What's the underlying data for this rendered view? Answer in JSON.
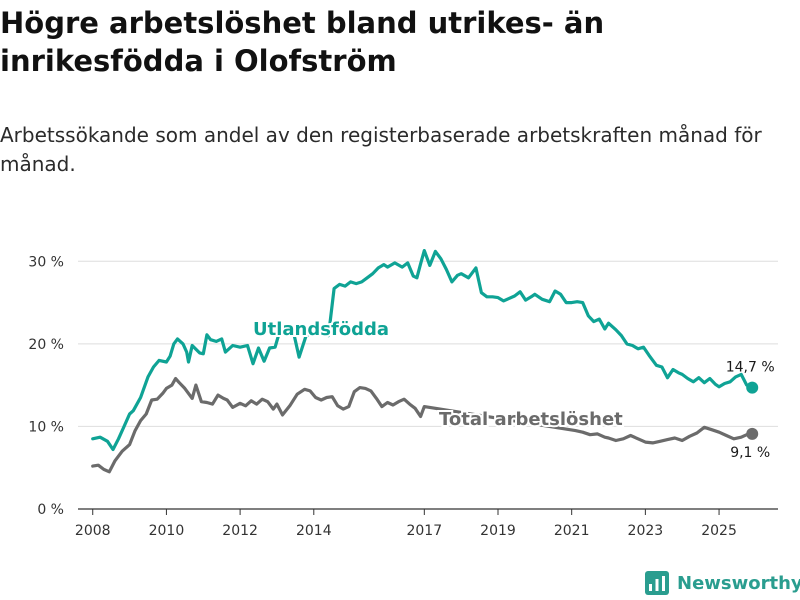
{
  "header": {
    "title": "Högre arbetslöshet bland utrikes- än inrikesfödda i Olofström",
    "subtitle": "Arbetssökande som andel av den registerbaserade arbetskraften månad för månad."
  },
  "brand": {
    "name": "Newsworthy"
  },
  "colors": {
    "teal": "#0fa395",
    "gray": "#6b6b6b",
    "grid": "#dedede",
    "axis": "#333333"
  },
  "chart_data": {
    "type": "line",
    "title": "Högre arbetslöshet bland utrikes- än inrikesfödda i Olofström",
    "subtitle": "Arbetssökande som andel av den registerbaserade arbetskraften månad för månad.",
    "xlabel": "",
    "ylabel": "",
    "ylim": [
      0,
      35
    ],
    "y_ticks": [
      0,
      10,
      20,
      30
    ],
    "y_tick_labels": [
      "0 %",
      "10 %",
      "20 %",
      "30 %"
    ],
    "xlim": [
      2007.6,
      2026.6
    ],
    "x_ticks": [
      2008,
      2010,
      2012,
      2014,
      2017,
      2019,
      2021,
      2023,
      2025
    ],
    "x_tick_labels": [
      "2008",
      "2010",
      "2012",
      "2014",
      "2017",
      "2019",
      "2021",
      "2023",
      "2025"
    ],
    "grid": true,
    "series": [
      {
        "name": "Utlandsfödda",
        "color": "#0fa395",
        "end_label": "14,7 %",
        "x": [
          2008.0,
          2008.2,
          2008.4,
          2008.55,
          2008.7,
          2008.85,
          2009.0,
          2009.1,
          2009.3,
          2009.5,
          2009.65,
          2009.8,
          2010.0,
          2010.1,
          2010.2,
          2010.3,
          2010.45,
          2010.55,
          2010.6,
          2010.7,
          2010.9,
          2011.0,
          2011.1,
          2011.2,
          2011.35,
          2011.5,
          2011.6,
          2011.8,
          2012.0,
          2012.2,
          2012.35,
          2012.5,
          2012.65,
          2012.8,
          2012.95,
          2013.1,
          2013.3,
          2013.45,
          2013.6,
          2013.8,
          2014.0,
          2014.2,
          2014.4,
          2014.55,
          2014.7,
          2014.85,
          2015.0,
          2015.15,
          2015.3,
          2015.45,
          2015.6,
          2015.75,
          2015.9,
          2016.0,
          2016.2,
          2016.4,
          2016.55,
          2016.7,
          2016.8,
          2016.9,
          2017.0,
          2017.15,
          2017.3,
          2017.45,
          2017.6,
          2017.75,
          2017.9,
          2018.0,
          2018.2,
          2018.4,
          2018.55,
          2018.7,
          2018.85,
          2019.0,
          2019.15,
          2019.3,
          2019.45,
          2019.6,
          2019.75,
          2019.9,
          2020.0,
          2020.2,
          2020.4,
          2020.55,
          2020.7,
          2020.85,
          2021.0,
          2021.15,
          2021.3,
          2021.45,
          2021.6,
          2021.75,
          2021.9,
          2022.0,
          2022.2,
          2022.35,
          2022.5,
          2022.65,
          2022.8,
          2022.95,
          2023.1,
          2023.3,
          2023.45,
          2023.6,
          2023.75,
          2023.9,
          2024.0,
          2024.15,
          2024.3,
          2024.45,
          2024.6,
          2024.75,
          2024.9,
          2025.0,
          2025.15,
          2025.3,
          2025.45,
          2025.6,
          2025.75,
          2025.9
        ],
        "y": [
          8.5,
          8.7,
          8.2,
          7.2,
          8.5,
          10.0,
          11.5,
          11.9,
          13.5,
          16.0,
          17.2,
          18.0,
          17.8,
          18.5,
          20.0,
          20.6,
          20.0,
          19.0,
          17.8,
          19.8,
          18.9,
          18.8,
          21.1,
          20.5,
          20.3,
          20.6,
          19.0,
          19.8,
          19.6,
          19.8,
          17.6,
          19.5,
          17.9,
          19.5,
          19.6,
          21.9,
          21.6,
          21.4,
          18.4,
          21.1,
          21.1,
          21.3,
          21.0,
          26.7,
          27.2,
          27.0,
          27.5,
          27.3,
          27.5,
          28.0,
          28.5,
          29.2,
          29.6,
          29.3,
          29.8,
          29.3,
          29.8,
          28.2,
          28.0,
          29.7,
          31.3,
          29.5,
          31.2,
          30.3,
          29.0,
          27.5,
          28.3,
          28.5,
          28.0,
          29.2,
          26.2,
          25.7,
          25.7,
          25.6,
          25.2,
          25.5,
          25.8,
          26.3,
          25.3,
          25.7,
          26.0,
          25.4,
          25.1,
          26.4,
          26.0,
          25.0,
          25.0,
          25.1,
          25.0,
          23.4,
          22.7,
          23.0,
          21.8,
          22.5,
          21.7,
          21.0,
          20.0,
          19.8,
          19.4,
          19.6,
          18.6,
          17.4,
          17.2,
          15.9,
          16.9,
          16.5,
          16.3,
          15.8,
          15.4,
          15.9,
          15.3,
          15.8,
          15.1,
          14.8,
          15.2,
          15.4,
          16.0,
          16.3,
          15.0,
          14.7
        ]
      },
      {
        "name": "Total arbetslöshet",
        "color": "#6b6b6b",
        "end_label": "9,1 %",
        "x": [
          2008.0,
          2008.15,
          2008.3,
          2008.45,
          2008.6,
          2008.8,
          2009.0,
          2009.15,
          2009.3,
          2009.45,
          2009.6,
          2009.75,
          2009.9,
          2010.0,
          2010.15,
          2010.25,
          2010.35,
          2010.5,
          2010.6,
          2010.7,
          2010.8,
          2010.95,
          2011.1,
          2011.25,
          2011.4,
          2011.55,
          2011.65,
          2011.8,
          2012.0,
          2012.15,
          2012.3,
          2012.45,
          2012.6,
          2012.75,
          2012.9,
          2013.0,
          2013.15,
          2013.35,
          2013.55,
          2013.75,
          2013.9,
          2014.05,
          2014.2,
          2014.35,
          2014.5,
          2014.65,
          2014.8,
          2014.95,
          2015.1,
          2015.25,
          2015.4,
          2015.55,
          2015.7,
          2015.85,
          2016.0,
          2016.15,
          2016.3,
          2016.45,
          2016.6,
          2016.75,
          2016.9,
          2017.0,
          2021.1,
          2021.3,
          2021.5,
          2021.7,
          2021.9,
          2022.0,
          2022.2,
          2022.4,
          2022.6,
          2022.8,
          2023.0,
          2023.2,
          2023.4,
          2023.6,
          2023.8,
          2024.0,
          2024.2,
          2024.4,
          2024.6,
          2024.8,
          2025.0,
          2025.2,
          2025.4,
          2025.6,
          2025.75,
          2025.9
        ],
        "y": [
          5.2,
          5.3,
          4.8,
          4.5,
          5.8,
          7.0,
          7.8,
          9.5,
          10.7,
          11.5,
          13.2,
          13.3,
          14.0,
          14.6,
          15.0,
          15.8,
          15.3,
          14.6,
          14.0,
          13.4,
          15.0,
          13.0,
          12.9,
          12.7,
          13.8,
          13.4,
          13.2,
          12.3,
          12.8,
          12.5,
          13.1,
          12.7,
          13.3,
          13.0,
          12.1,
          12.7,
          11.4,
          12.5,
          13.9,
          14.5,
          14.3,
          13.5,
          13.2,
          13.5,
          13.6,
          12.5,
          12.1,
          12.4,
          14.2,
          14.7,
          14.6,
          14.3,
          13.4,
          12.4,
          12.9,
          12.6,
          13.0,
          13.3,
          12.7,
          12.2,
          11.2,
          12.4,
          9.5,
          9.3,
          9.0,
          9.1,
          8.7,
          8.6,
          8.3,
          8.5,
          8.9,
          8.5,
          8.1,
          8.0,
          8.2,
          8.4,
          8.6,
          8.3,
          8.8,
          9.2,
          9.9,
          9.6,
          9.3,
          8.9,
          8.5,
          8.7,
          9.0,
          9.1
        ]
      }
    ]
  }
}
